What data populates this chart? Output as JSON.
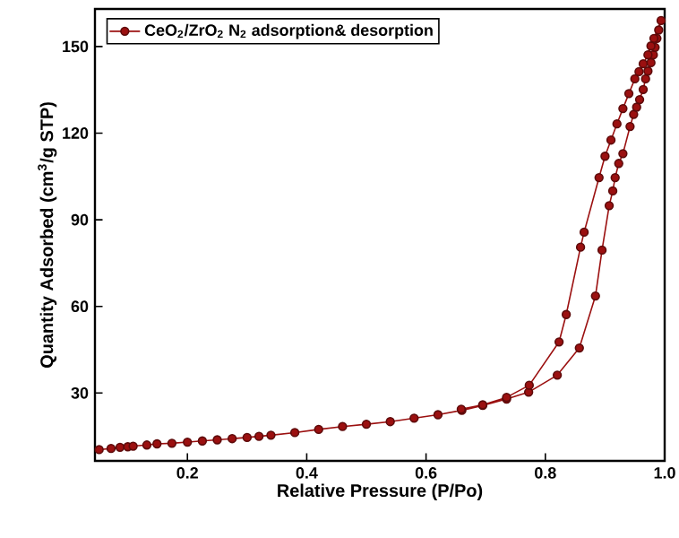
{
  "chart_data": {
    "type": "line",
    "xlabel": "Relative Pressure (P/Po)",
    "ylabel": "Quantity Adsorbed (cm$^{3}$/g STP)",
    "xlim": [
      0.045,
      1.0
    ],
    "ylim": [
      6.5,
      163
    ],
    "xticks": [
      0.2,
      0.4,
      0.6,
      0.8,
      {
        "value": 1.0,
        "label": "1.0"
      }
    ],
    "yticks": [
      30,
      60,
      90,
      120,
      150
    ],
    "legend": "top left",
    "marker": "circle",
    "grid": false,
    "series": [
      {
        "name": "CeO$_{2}$/ZrO$_{2}$ N$_{2}$ adsorption& desorption",
        "color": "#9b1010",
        "x": [
          0.052,
          0.072,
          0.087,
          0.1,
          0.109,
          0.132,
          0.149,
          0.174,
          0.2,
          0.225,
          0.25,
          0.275,
          0.3,
          0.32,
          0.34,
          0.38,
          0.42,
          0.46,
          0.5,
          0.54,
          0.58,
          0.62,
          0.66,
          0.695,
          0.735,
          0.772,
          0.82,
          0.857,
          0.884,
          0.895,
          0.907,
          0.913,
          0.917,
          0.923,
          0.93,
          0.942,
          0.948,
          0.953,
          0.958,
          0.964,
          0.968,
          0.972,
          0.977,
          0.981,
          0.984,
          0.987,
          0.99,
          0.994,
          0.982,
          0.977,
          0.972,
          0.964,
          0.957,
          0.95,
          0.94,
          0.93,
          0.92,
          0.91,
          0.9,
          0.89,
          0.865,
          0.859,
          0.835,
          0.823,
          0.773,
          0.735,
          0.695,
          0.659
        ],
        "values": [
          10.4,
          10.8,
          11.2,
          11.4,
          11.6,
          12.0,
          12.4,
          12.6,
          13.0,
          13.4,
          13.8,
          14.2,
          14.6,
          15.0,
          15.4,
          16.3,
          17.4,
          18.4,
          19.2,
          20.1,
          21.3,
          22.5,
          24.0,
          25.7,
          27.9,
          30.3,
          36.2,
          45.6,
          63.6,
          79.5,
          94.9,
          100,
          104.6,
          109.5,
          112.9,
          122.3,
          126.5,
          129,
          131.6,
          135.1,
          138.8,
          141.5,
          144.4,
          147.1,
          149.7,
          152.8,
          155.7,
          159,
          152.8,
          150.2,
          147.1,
          144,
          141.3,
          138.8,
          133.7,
          128.5,
          123.2,
          117.6,
          112,
          104.6,
          85.7,
          80.5,
          57.2,
          47.7,
          32.7,
          28.5,
          25.9,
          24.4
        ]
      }
    ]
  }
}
